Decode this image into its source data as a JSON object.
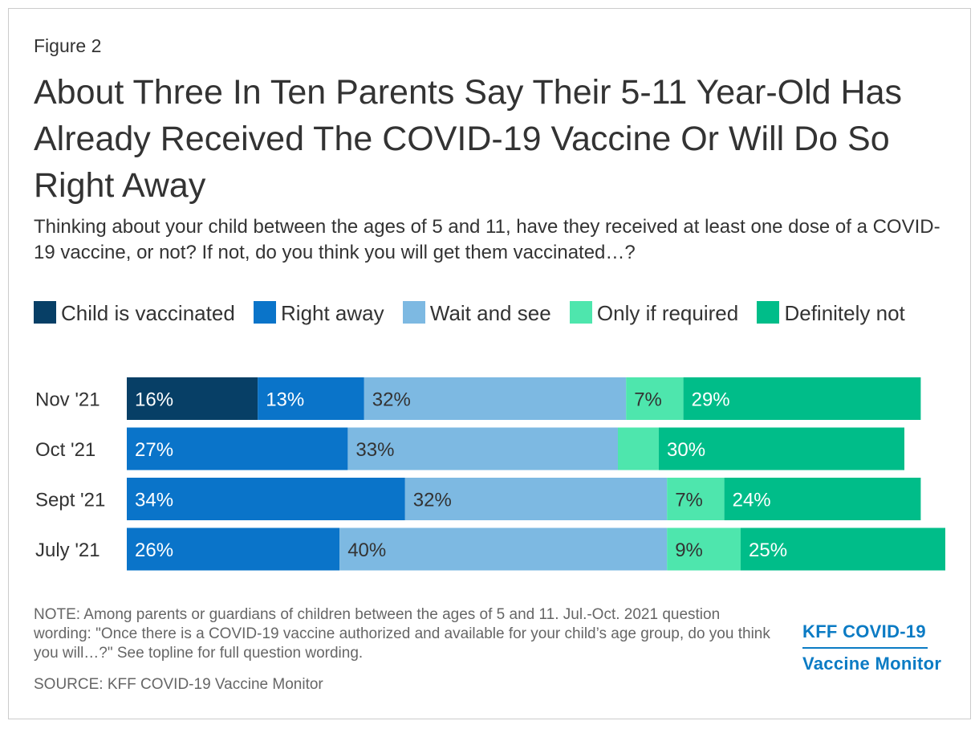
{
  "figure_label": "Figure 2",
  "title": "About Three In Ten Parents Say Their 5-11 Year-Old Has Already Received The COVID-19 Vaccine Or Will Do So Right Away",
  "subtitle": "Thinking about your child between the ages of 5 and 11, have they received at least one dose of a COVID-19 vaccine, or not? If not, do you think you will get them vaccinated…?",
  "note": "NOTE: Among parents or guardians of children between the ages of 5 and 11. Jul.-Oct. 2021 question wording: \"Once there is a COVID-19 vaccine authorized and available for your child’s age group, do you think you will…?\" See topline for full question wording.",
  "source": "SOURCE: KFF COVID-19 Vaccine Monitor",
  "brand": {
    "line1": "KFF COVID-19",
    "line2": "Vaccine Monitor"
  },
  "colors": {
    "child_vaccinated": "#073f66",
    "right_away": "#0a74c9",
    "wait_and_see": "#7db9e2",
    "only_if_required": "#4ee6ad",
    "definitely_not": "#00bd89"
  },
  "chart_data": {
    "type": "bar",
    "orientation": "horizontal",
    "stacked": true,
    "categories": [
      "Nov '21",
      "Oct '21",
      "Sept '21",
      "July '21"
    ],
    "series": [
      {
        "name": "Child is vaccinated",
        "color": "#073f66",
        "values": [
          16,
          0,
          0,
          0
        ],
        "labels": [
          "16%",
          "",
          "",
          ""
        ]
      },
      {
        "name": "Right away",
        "color": "#0a74c9",
        "values": [
          13,
          27,
          34,
          26
        ],
        "labels": [
          "13%",
          "27%",
          "34%",
          "26%"
        ]
      },
      {
        "name": "Wait and see",
        "color": "#7db9e2",
        "values": [
          32,
          33,
          32,
          40
        ],
        "labels": [
          "32%",
          "33%",
          "32%",
          "40%"
        ]
      },
      {
        "name": "Only if required",
        "color": "#4ee6ad",
        "values": [
          7,
          5,
          7,
          9
        ],
        "labels": [
          "7%",
          "",
          "7%",
          "9%"
        ]
      },
      {
        "name": "Definitely not",
        "color": "#00bd89",
        "values": [
          29,
          30,
          24,
          25
        ],
        "labels": [
          "29%",
          "30%",
          "24%",
          "25%"
        ]
      }
    ],
    "xlim": [
      0,
      100
    ],
    "legend": "top"
  }
}
